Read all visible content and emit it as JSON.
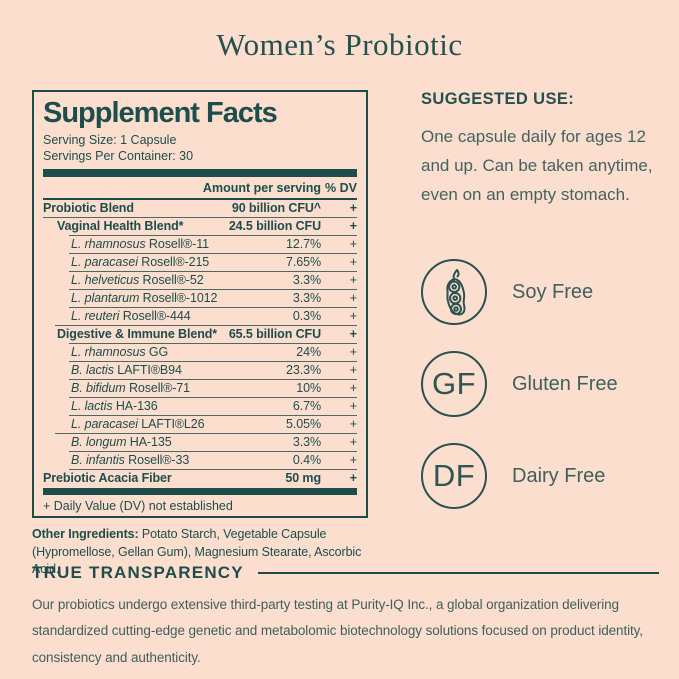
{
  "page": {
    "title": "Women’s Probiotic",
    "colors": {
      "background": "#fcdecf",
      "accent_teal": "#1e4c4b",
      "body_teal": "#44635f"
    }
  },
  "supplement_facts": {
    "title": "Supplement Facts",
    "serving_size": "Serving Size: 1 Capsule",
    "servings_per_container": "Servings Per Container: 30",
    "col_amount": "Amount per serving",
    "col_dv": "% DV",
    "rows": [
      {
        "name_italic": "",
        "name_rest": "Probiotic Blend",
        "amount": "90 billion CFU^",
        "dv": "+",
        "level": 0,
        "bold": true,
        "divider": "full"
      },
      {
        "name_italic": "",
        "name_rest": "Vaginal Health Blend*",
        "amount": "24.5 billion CFU",
        "dv": "+",
        "level": 1,
        "bold": true,
        "divider": "deep"
      },
      {
        "name_italic": "L. rhamnosus",
        "name_rest": " Rosell®-11",
        "amount": "12.7%",
        "dv": "+",
        "level": 2,
        "bold": false,
        "divider": "deep"
      },
      {
        "name_italic": "L. paracasei",
        "name_rest": " Rosell®-215",
        "amount": "7.65%",
        "dv": "+",
        "level": 2,
        "bold": false,
        "divider": "deep"
      },
      {
        "name_italic": "L. helveticus",
        "name_rest": " Rosell®-52",
        "amount": "3.3%",
        "dv": "+",
        "level": 2,
        "bold": false,
        "divider": "deep"
      },
      {
        "name_italic": "L. plantarum",
        "name_rest": " Rosell®-1012",
        "amount": "3.3%",
        "dv": "+",
        "level": 2,
        "bold": false,
        "divider": "deep"
      },
      {
        "name_italic": "L. reuteri",
        "name_rest": " Rosell®-444",
        "amount": "0.3%",
        "dv": "+",
        "level": 2,
        "bold": false,
        "divider": "mid"
      },
      {
        "name_italic": "",
        "name_rest": "Digestive & Immune Blend*",
        "amount": "65.5 billion CFU",
        "dv": "+",
        "level": 1,
        "bold": true,
        "divider": "deep"
      },
      {
        "name_italic": "L. rhamnosus",
        "name_rest": " GG",
        "amount": "24%",
        "dv": "+",
        "level": 2,
        "bold": false,
        "divider": "deep"
      },
      {
        "name_italic": "B. lactis",
        "name_rest": " LAFTI®B94",
        "amount": "23.3%",
        "dv": "+",
        "level": 2,
        "bold": false,
        "divider": "deep"
      },
      {
        "name_italic": "B. bifidum",
        "name_rest": " Rosell®-71",
        "amount": "10%",
        "dv": "+",
        "level": 2,
        "bold": false,
        "divider": "deep"
      },
      {
        "name_italic": "L. lactis",
        "name_rest": " HA-136",
        "amount": "6.7%",
        "dv": "+",
        "level": 2,
        "bold": false,
        "divider": "deep"
      },
      {
        "name_italic": "L. paracasei",
        "name_rest": " LAFTI®L26",
        "amount": "5.05%",
        "dv": "+",
        "level": 2,
        "bold": false,
        "divider": "mid"
      },
      {
        "name_italic": "B. longum",
        "name_rest": " HA-135",
        "amount": "3.3%",
        "dv": "+",
        "level": 2,
        "bold": false,
        "divider": "deep"
      },
      {
        "name_italic": "B. infantis",
        "name_rest": " Rosell®-33",
        "amount": "0.4%",
        "dv": "+",
        "level": 2,
        "bold": false,
        "divider": "deep"
      },
      {
        "name_italic": "",
        "name_rest": "Prebiotic Acacia Fiber",
        "amount": "50 mg",
        "dv": "+",
        "level": 0,
        "bold": true,
        "divider": "none"
      }
    ],
    "footnote": "+ Daily Value (DV) not established"
  },
  "other_ingredients": {
    "label": "Other Ingredients:",
    "text": " Potato Starch, Vegetable Capsule (Hypromellose, Gellan Gum), Magnesium Stearate, Ascorbic Acid."
  },
  "suggested_use": {
    "heading": "SUGGESTED USE:",
    "text": "One capsule daily for ages 12 and up. Can be taken anytime, even on an empty stomach."
  },
  "badges": [
    {
      "icon": "soy-pod-icon",
      "initials": "",
      "label": "Soy Free"
    },
    {
      "icon": "gluten-free-initials",
      "initials": "GF",
      "label": "Gluten Free"
    },
    {
      "icon": "dairy-free-initials",
      "initials": "DF",
      "label": "Dairy Free"
    }
  ],
  "transparency": {
    "heading": "TRUE TRANSPARENCY",
    "text": "Our probiotics undergo extensive third-party testing at Purity-IQ Inc., a global organization delivering standardized cutting-edge genetic and metabolomic biotechnology solutions focused on product identity, consistency and authenticity."
  }
}
